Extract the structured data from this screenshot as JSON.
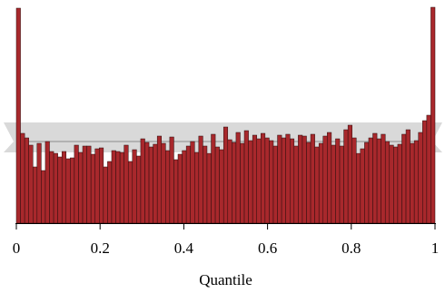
{
  "chart_data": {
    "type": "bar",
    "xlabel": "Quantile",
    "ylabel": "",
    "xlim": [
      0,
      1
    ],
    "ylim": [
      0,
      240
    ],
    "bin_width": 0.01,
    "xticks": [
      {
        "value": 0,
        "label": "0"
      },
      {
        "value": 0.2,
        "label": "0.2"
      },
      {
        "value": 0.4,
        "label": "0.4"
      },
      {
        "value": 0.6,
        "label": "0.6"
      },
      {
        "value": 0.8,
        "label": "0.8"
      },
      {
        "value": 1,
        "label": "1"
      }
    ],
    "values": [
      237,
      99,
      94,
      86,
      62,
      88,
      58,
      90,
      79,
      77,
      73,
      79,
      71,
      72,
      86,
      78,
      85,
      85,
      76,
      82,
      83,
      62,
      68,
      80,
      79,
      78,
      86,
      68,
      81,
      74,
      93,
      89,
      84,
      87,
      96,
      88,
      80,
      95,
      70,
      76,
      80,
      85,
      90,
      78,
      96,
      85,
      77,
      98,
      84,
      81,
      106,
      92,
      89,
      100,
      88,
      102,
      91,
      97,
      93,
      99,
      94,
      91,
      85,
      97,
      94,
      98,
      93,
      85,
      97,
      96,
      89,
      98,
      84,
      88,
      96,
      100,
      86,
      93,
      85,
      103,
      108,
      94,
      77,
      82,
      89,
      94,
      99,
      93,
      98,
      90,
      86,
      84,
      87,
      98,
      103,
      88,
      91,
      100,
      113,
      119,
      238
    ],
    "expected_band": {
      "center": 90,
      "low": 78,
      "high": 111
    },
    "colors": {
      "bar_fill": "#a8282c",
      "bar_stroke": "#2a0c0c",
      "band": "#d9d9d9",
      "band_line": "#8c8c8c"
    }
  }
}
